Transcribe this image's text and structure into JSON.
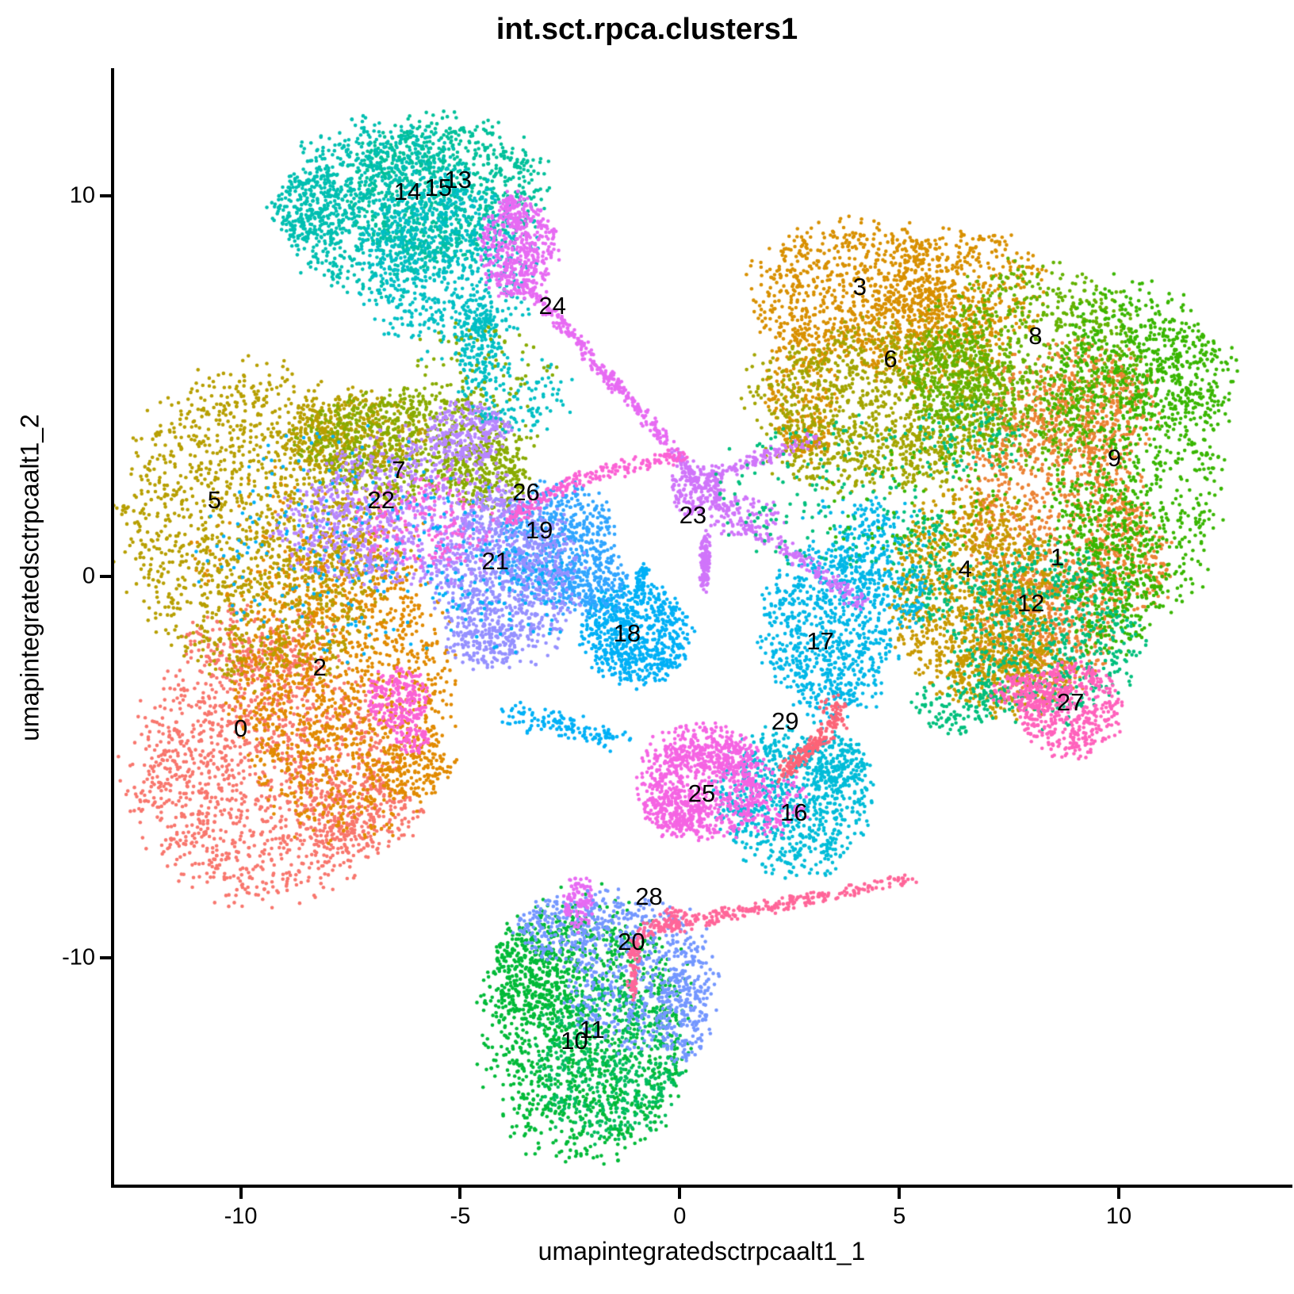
{
  "title": "int.sct.rpca.clusters1",
  "axes": {
    "x": {
      "label": "umapintegratedsctrpcaalt1_1",
      "ticks": [
        -10,
        -5,
        0,
        5,
        10
      ],
      "range": [
        -12.9,
        13.9
      ]
    },
    "y": {
      "label": "umapintegratedsctrpcaalt1_2",
      "ticks": [
        10,
        0,
        -10
      ],
      "range": [
        -16.0,
        13.3
      ]
    }
  },
  "chart_data": {
    "type": "scatter",
    "title": "int.sct.rpca.clusters1",
    "xlabel": "umapintegratedsctrpcaalt1_1",
    "ylabel": "umapintegratedsctrpcaalt1_2",
    "xlim": [
      -12.9,
      13.9
    ],
    "ylim": [
      -16.0,
      13.3
    ],
    "grid": false,
    "legend": "none",
    "n_clusters": 30,
    "clusters": [
      {
        "id": "0",
        "color": "#F8766D",
        "label": {
          "x": -10.0,
          "y": -4.0
        },
        "blobs": [
          [
            -9.5,
            -5.1,
            2.9,
            3.3,
            1500
          ],
          [
            -7.3,
            -6.3,
            1.3,
            1.0,
            220
          ],
          [
            -9.6,
            -1.6,
            1.8,
            0.9,
            180
          ]
        ],
        "strands": []
      },
      {
        "id": "1",
        "color": "#EB8335",
        "label": {
          "x": 8.6,
          "y": 0.5
        },
        "blobs": [
          [
            8.5,
            1.8,
            2.0,
            3.3,
            900
          ],
          [
            9.4,
            4.6,
            1.5,
            1.6,
            260
          ],
          [
            8.3,
            -1.4,
            1.6,
            1.6,
            480
          ],
          [
            10.3,
            0.5,
            0.9,
            1.5,
            200
          ]
        ],
        "strands": []
      },
      {
        "id": "2",
        "color": "#E18A00",
        "label": {
          "x": -8.2,
          "y": -2.4
        },
        "blobs": [
          [
            -7.7,
            -2.8,
            2.4,
            3.9,
            1450
          ],
          [
            -8.6,
            0.6,
            2.6,
            2.1,
            140
          ],
          [
            -6.0,
            -5.0,
            0.9,
            0.8,
            120
          ]
        ],
        "strands": []
      },
      {
        "id": "3",
        "color": "#D89000",
        "label": {
          "x": 4.1,
          "y": 7.6
        },
        "blobs": [
          [
            4.0,
            7.4,
            2.3,
            1.9,
            750
          ],
          [
            6.5,
            7.6,
            1.8,
            1.5,
            450
          ],
          [
            2.8,
            4.8,
            0.8,
            1.7,
            250
          ],
          [
            5.5,
            6.2,
            2.0,
            1.3,
            300
          ]
        ],
        "strands": []
      },
      {
        "id": "4",
        "color": "#C89900",
        "label": {
          "x": 6.5,
          "y": 0.2
        },
        "blobs": [
          [
            6.7,
            -0.4,
            1.9,
            2.6,
            1100
          ],
          [
            7.6,
            -2.6,
            1.4,
            1.1,
            320
          ]
        ],
        "strands": []
      },
      {
        "id": "5",
        "color": "#B79F00",
        "label": {
          "x": -10.6,
          "y": 2.0
        },
        "blobs": [
          [
            -9.5,
            1.4,
            3.1,
            4.0,
            1600
          ],
          [
            -7.5,
            3.7,
            1.6,
            1.1,
            400
          ]
        ],
        "strands": []
      },
      {
        "id": "6",
        "color": "#A3A500",
        "label": {
          "x": 4.8,
          "y": 5.7
        },
        "blobs": [
          [
            4.7,
            4.7,
            3.1,
            1.9,
            950
          ],
          [
            4.3,
            3.1,
            2.3,
            0.9,
            260
          ]
        ],
        "strands": []
      },
      {
        "id": "7",
        "color": "#89AB00",
        "label": {
          "x": -6.4,
          "y": 2.8
        },
        "blobs": [
          [
            -6.1,
            3.5,
            2.6,
            1.4,
            750
          ],
          [
            -4.4,
            2.6,
            0.9,
            0.9,
            200
          ]
        ],
        "strands": []
      },
      {
        "id": "8",
        "color": "#64B200",
        "label": {
          "x": 8.1,
          "y": 6.3
        },
        "blobs": [
          [
            8.0,
            5.6,
            2.5,
            2.5,
            900
          ],
          [
            6.2,
            5.2,
            1.2,
            1.2,
            250
          ]
        ],
        "strands": []
      },
      {
        "id": "9",
        "color": "#39B600",
        "label": {
          "x": 9.9,
          "y": 3.1
        },
        "blobs": [
          [
            10.3,
            3.2,
            2.0,
            4.4,
            950
          ],
          [
            11.2,
            5.3,
            1.4,
            1.4,
            300
          ],
          [
            9.9,
            0.0,
            1.1,
            2.0,
            300
          ]
        ],
        "strands": []
      },
      {
        "id": "10",
        "color": "#00BA38",
        "label": {
          "x": -2.4,
          "y": -12.2
        },
        "blobs": [
          [
            -2.1,
            -11.9,
            2.3,
            3.4,
            1300
          ],
          [
            -3.3,
            -10.3,
            1.0,
            1.4,
            300
          ]
        ],
        "strands": []
      },
      {
        "id": "11",
        "color": "#00BD5F",
        "label": {
          "x": -2.0,
          "y": -11.9
        },
        "blobs": [
          [
            -1.6,
            -12.7,
            1.7,
            2.0,
            500
          ]
        ],
        "strands": []
      },
      {
        "id": "12",
        "color": "#00BF7D",
        "label": {
          "x": 8.0,
          "y": -0.7
        },
        "blobs": [
          [
            8.3,
            -1.5,
            2.2,
            2.3,
            650
          ],
          [
            5.6,
            0.3,
            0.8,
            1.6,
            140
          ],
          [
            6.3,
            -3.3,
            0.9,
            0.8,
            120
          ]
        ],
        "strands": []
      },
      {
        "id": "13",
        "color": "#00C09A",
        "label": {
          "x": -5.05,
          "y": 10.4
        },
        "blobs": [
          [
            -5.3,
            10.2,
            2.2,
            1.9,
            850
          ]
        ],
        "strands": []
      },
      {
        "id": "14",
        "color": "#00BFB1",
        "label": {
          "x": -6.2,
          "y": 10.1
        },
        "blobs": [
          [
            -6.9,
            9.7,
            2.1,
            2.3,
            850
          ],
          [
            -8.3,
            9.7,
            1.0,
            1.0,
            250
          ]
        ],
        "strands": []
      },
      {
        "id": "15",
        "color": "#00BFC4",
        "label": {
          "x": -5.5,
          "y": 10.2
        },
        "blobs": [
          [
            -5.3,
            8.2,
            1.9,
            2.3,
            750
          ],
          [
            -4.6,
            6.1,
            0.5,
            1.0,
            160
          ],
          [
            -3.9,
            4.7,
            1.1,
            0.8,
            70
          ]
        ],
        "strands": []
      },
      {
        "id": "16",
        "color": "#00BCD8",
        "label": {
          "x": 2.6,
          "y": -6.2
        },
        "blobs": [
          [
            2.6,
            -5.9,
            1.7,
            1.9,
            800
          ],
          [
            3.6,
            -4.9,
            0.7,
            0.7,
            150
          ]
        ],
        "strands": []
      },
      {
        "id": "17",
        "color": "#00B7E7",
        "label": {
          "x": 3.2,
          "y": -1.7
        },
        "blobs": [
          [
            3.4,
            -1.5,
            1.5,
            2.2,
            800
          ],
          [
            4.3,
            0.6,
            0.7,
            1.3,
            160
          ],
          [
            5.3,
            -0.6,
            0.4,
            0.8,
            60
          ]
        ],
        "strands": []
      },
      {
        "id": "18",
        "color": "#00B0F6",
        "label": {
          "x": -1.2,
          "y": -1.5
        },
        "blobs": [
          [
            -1.0,
            -1.5,
            1.2,
            1.3,
            700
          ]
        ],
        "strands": [
          [
            -0.8,
            0.3,
            -1.0,
            -0.5,
            0.15,
            60
          ],
          [
            -3.9,
            -3.6,
            -1.3,
            -4.3,
            0.3,
            130
          ]
        ]
      },
      {
        "id": "19",
        "color": "#30A5FF",
        "label": {
          "x": -3.2,
          "y": 1.2
        },
        "blobs": [
          [
            -2.8,
            0.8,
            1.3,
            1.6,
            650
          ],
          [
            -2.0,
            -0.2,
            0.8,
            0.8,
            150
          ]
        ],
        "strands": []
      },
      {
        "id": "20",
        "color": "#7497FF",
        "label": {
          "x": -1.1,
          "y": -9.6
        },
        "blobs": [
          [
            -0.9,
            -10.5,
            1.7,
            1.9,
            520
          ],
          [
            -2.7,
            -9.2,
            1.0,
            0.8,
            200
          ],
          [
            0.1,
            -11.5,
            0.6,
            1.3,
            160
          ]
        ],
        "strands": []
      },
      {
        "id": "21",
        "color": "#9590FF",
        "label": {
          "x": -4.2,
          "y": 0.4
        },
        "blobs": [
          [
            -3.9,
            0.0,
            1.6,
            2.2,
            900
          ],
          [
            -4.5,
            -1.8,
            0.8,
            0.6,
            120
          ]
        ],
        "strands": []
      },
      {
        "id": "22",
        "color": "#B787FF",
        "label": {
          "x": -6.8,
          "y": 2.0
        },
        "blobs": [
          [
            -6.1,
            1.7,
            2.4,
            2.0,
            700
          ],
          [
            -4.8,
            3.8,
            0.9,
            0.8,
            260
          ],
          [
            -7.8,
            1.2,
            1.5,
            1.3,
            200
          ]
        ],
        "strands": []
      },
      {
        "id": "23",
        "color": "#D075FA",
        "label": {
          "x": 0.3,
          "y": 1.6
        },
        "blobs": [
          [
            0.4,
            2.3,
            0.6,
            0.7,
            170
          ],
          [
            1.5,
            1.6,
            0.9,
            0.6,
            80
          ]
        ],
        "strands": [
          [
            0.6,
            1.1,
            0.55,
            -0.3,
            0.12,
            140
          ],
          [
            0.7,
            2.0,
            4.2,
            -0.7,
            0.22,
            190
          ],
          [
            0.6,
            2.6,
            3.1,
            3.6,
            0.18,
            120
          ],
          [
            -0.1,
            3.3,
            0.4,
            2.4,
            0.15,
            70
          ]
        ]
      },
      {
        "id": "24",
        "color": "#E76BF3",
        "label": {
          "x": -2.9,
          "y": 7.1
        },
        "blobs": [
          [
            -3.7,
            8.6,
            0.85,
            1.3,
            450
          ],
          [
            -2.3,
            -8.6,
            0.35,
            0.7,
            120
          ]
        ],
        "strands": [
          [
            -3.6,
            7.8,
            -0.2,
            3.4,
            0.18,
            300
          ],
          [
            -3.9,
            9.9,
            -3.7,
            9.0,
            0.3,
            60
          ]
        ]
      },
      {
        "id": "25",
        "color": "#F564E3",
        "label": {
          "x": 0.5,
          "y": -5.7
        },
        "blobs": [
          [
            0.5,
            -5.4,
            1.4,
            1.5,
            700
          ],
          [
            -0.1,
            -6.2,
            0.7,
            0.6,
            200
          ],
          [
            0.7,
            -4.7,
            1.1,
            0.4,
            150
          ],
          [
            2.0,
            -5.9,
            0.9,
            0.9,
            130
          ]
        ],
        "strands": []
      },
      {
        "id": "26",
        "color": "#FB62D5",
        "label": {
          "x": -3.5,
          "y": 2.2
        },
        "blobs": [
          [
            -6.4,
            -3.2,
            0.65,
            0.8,
            230
          ],
          [
            -6.1,
            -4.3,
            0.35,
            0.35,
            60
          ],
          [
            -5.8,
            1.5,
            1.6,
            1.3,
            110
          ]
        ],
        "strands": [
          [
            -3.9,
            1.5,
            -2.5,
            2.5,
            0.2,
            90
          ],
          [
            -2.5,
            2.5,
            -0.7,
            3.0,
            0.2,
            80
          ],
          [
            -0.7,
            3.0,
            0.1,
            3.2,
            0.15,
            40
          ]
        ]
      },
      {
        "id": "27",
        "color": "#FF62BC",
        "label": {
          "x": 8.9,
          "y": -3.3
        },
        "blobs": [
          [
            8.9,
            -3.5,
            1.1,
            1.2,
            450
          ],
          [
            8.0,
            -3.0,
            0.9,
            0.5,
            150
          ]
        ],
        "strands": []
      },
      {
        "id": "28",
        "color": "#FF6699",
        "label": {
          "x": -0.7,
          "y": -8.4
        },
        "blobs": [
          [
            -0.2,
            -9.0,
            0.4,
            0.3,
            40
          ]
        ],
        "strands": [
          [
            -0.9,
            -9.3,
            3.3,
            -8.4,
            0.18,
            220
          ],
          [
            3.3,
            -8.4,
            5.3,
            -7.9,
            0.15,
            60
          ],
          [
            -1.0,
            -9.5,
            -1.1,
            -11.0,
            0.15,
            80
          ]
        ]
      },
      {
        "id": "29",
        "color": "#FC6477",
        "label": {
          "x": 2.4,
          "y": -3.8
        },
        "blobs": [
          [
            3.5,
            -3.4,
            0.3,
            0.3,
            30
          ]
        ],
        "strands": [
          [
            2.3,
            -5.2,
            3.7,
            -3.7,
            0.2,
            170
          ]
        ]
      }
    ],
    "noise": [
      {
        "color": "#00B0F6",
        "blob": [
          -7.5,
          0.8,
          3.3,
          2.9,
          230
        ]
      },
      {
        "color": "#00B0F6",
        "blob": [
          -4.0,
          -0.5,
          1.5,
          1.5,
          80
        ]
      },
      {
        "color": "#00B7E7",
        "blob": [
          4.3,
          1.2,
          1.5,
          1.0,
          60
        ]
      },
      {
        "color": "#00BF7D",
        "blob": [
          3.5,
          2.2,
          2.6,
          2.0,
          170
        ]
      },
      {
        "color": "#00BF7D",
        "blob": [
          6.6,
          3.6,
          1.2,
          1.0,
          90
        ]
      },
      {
        "color": "#39B600",
        "blob": [
          5.3,
          2.0,
          2.2,
          1.5,
          80
        ]
      },
      {
        "color": "#00BFC4",
        "blob": [
          -3.6,
          4.8,
          1.3,
          1.0,
          70
        ]
      },
      {
        "color": "#EB8335",
        "blob": [
          8.7,
          4.6,
          1.9,
          1.6,
          150
        ]
      },
      {
        "color": "#89AB00",
        "blob": [
          -4.4,
          5.6,
          1.6,
          1.2,
          80
        ]
      },
      {
        "color": "#F564E3",
        "blob": [
          -5.6,
          1.4,
          1.7,
          1.3,
          70
        ]
      },
      {
        "color": "#D89000",
        "blob": [
          2.9,
          3.5,
          0.5,
          0.4,
          25
        ]
      },
      {
        "color": "#7497FF",
        "blob": [
          -1.5,
          -8.6,
          0.8,
          0.5,
          40
        ]
      }
    ]
  }
}
